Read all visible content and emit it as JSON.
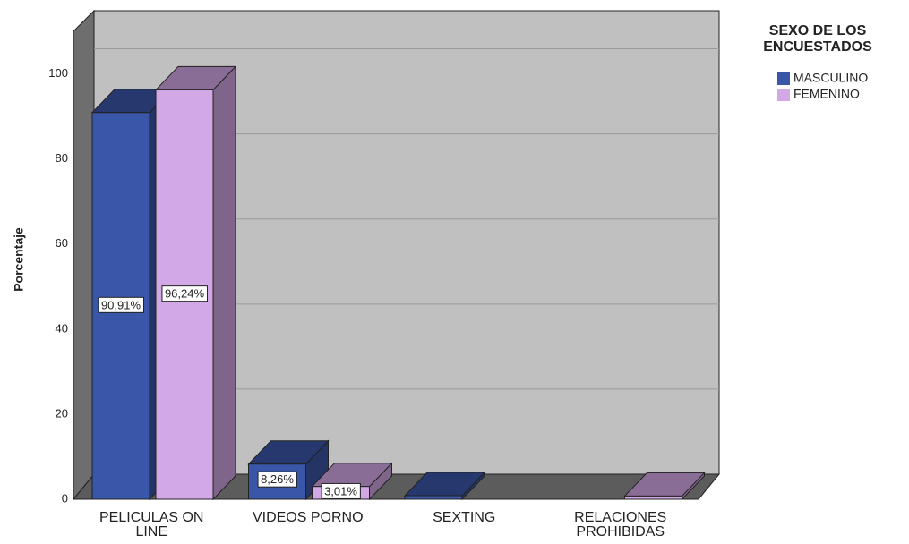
{
  "chart_data": {
    "type": "bar3d",
    "y_label": "Porcentaje",
    "legend_title": "SEXO DE LOS ENCUESTADOS",
    "categories": [
      "PELICULAS ON LINE",
      "VIDEOS PORNO",
      "SEXTING",
      "RELACIONES PROHIBIDAS"
    ],
    "series": [
      {
        "name": "MASCULINO",
        "color": "#3a56a8",
        "values": [
          90.91,
          8.26,
          0.83,
          0
        ],
        "value_labels": [
          "90,91%",
          "8,26%",
          null,
          null
        ]
      },
      {
        "name": "FEMENINO",
        "color": "#d3a8e6",
        "values": [
          96.24,
          3.01,
          0,
          0.75
        ],
        "value_labels": [
          "96,24%",
          "3,01%",
          null,
          null
        ]
      }
    ],
    "ylim": [
      0,
      110
    ],
    "yticks": [
      0,
      20,
      40,
      60,
      80,
      100
    ],
    "grid": true
  }
}
